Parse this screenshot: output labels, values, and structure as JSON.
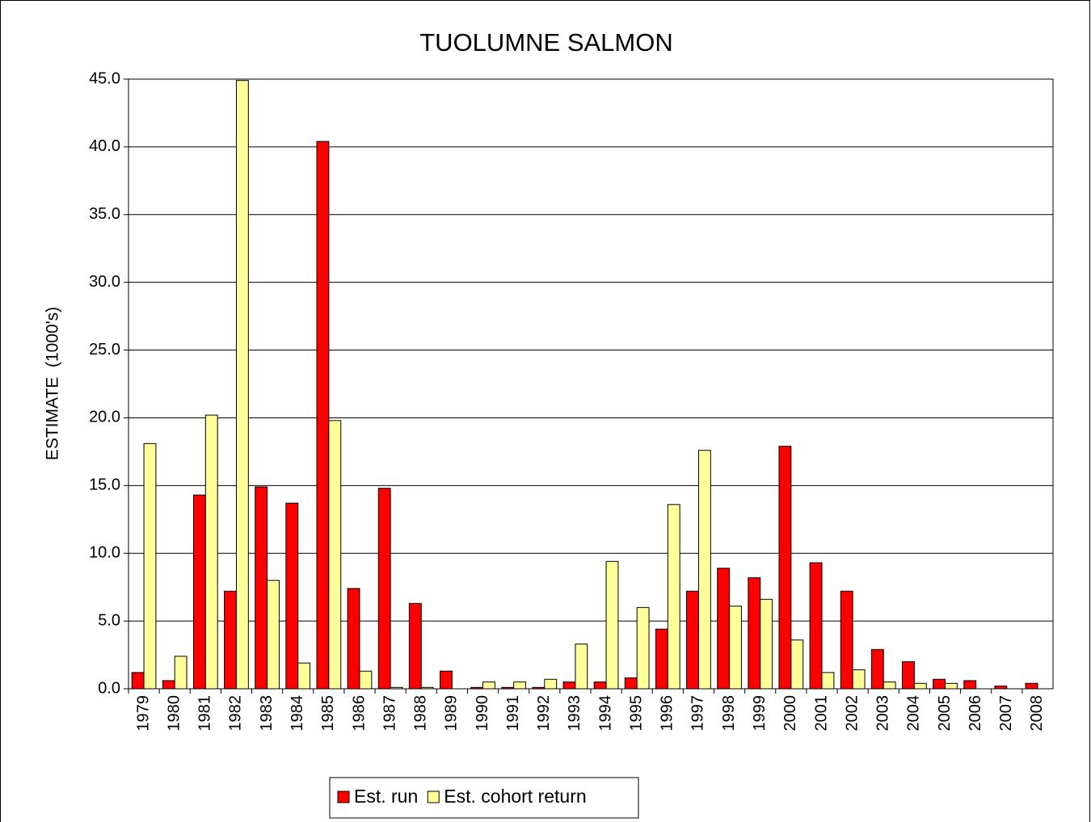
{
  "chart_data": {
    "type": "bar",
    "title": "TUOLUMNE SALMON",
    "y_label": "ESTIMATE  (1000's)",
    "categories": [
      "1979",
      "1980",
      "1981",
      "1982",
      "1983",
      "1984",
      "1985",
      "1986",
      "1987",
      "1988",
      "1989",
      "1990",
      "1991",
      "1992",
      "1993",
      "1994",
      "1995",
      "1996",
      "1997",
      "1998",
      "1999",
      "2000",
      "2001",
      "2002",
      "2003",
      "2004",
      "2005",
      "2006",
      "2007",
      "2008"
    ],
    "series": [
      {
        "name": "Est. run",
        "color": "#ff0000",
        "values": [
          1.2,
          0.6,
          14.3,
          7.2,
          14.9,
          13.7,
          40.4,
          7.4,
          14.8,
          6.3,
          1.3,
          0.1,
          0.1,
          0.1,
          0.5,
          0.5,
          0.8,
          4.4,
          7.2,
          8.9,
          8.2,
          17.9,
          9.3,
          7.2,
          2.9,
          2.0,
          0.7,
          0.6,
          0.2,
          0.4
        ]
      },
      {
        "name": "Est. cohort return",
        "color": "#ffff99",
        "values": [
          18.1,
          2.4,
          20.2,
          44.9,
          8.0,
          1.9,
          19.8,
          1.3,
          0.1,
          0.1,
          0,
          0.5,
          0.5,
          0.7,
          3.3,
          9.4,
          6.0,
          13.6,
          17.6,
          6.1,
          6.6,
          3.6,
          1.2,
          1.4,
          0.5,
          0.4,
          0.4,
          0,
          0,
          0
        ]
      }
    ],
    "ylim": [
      0,
      45
    ],
    "yticks": [
      {
        "value": 0,
        "label": "0.0"
      },
      {
        "value": 5,
        "label": "5.0"
      },
      {
        "value": 10,
        "label": "10.0"
      },
      {
        "value": 15,
        "label": "15.0"
      },
      {
        "value": 20,
        "label": "20.0"
      },
      {
        "value": 25,
        "label": "25.0"
      },
      {
        "value": 30,
        "label": "30.0"
      },
      {
        "value": 35,
        "label": "35.0"
      },
      {
        "value": 40,
        "label": "40.0"
      },
      {
        "value": 45,
        "label": "45.0"
      }
    ],
    "grid": true
  }
}
